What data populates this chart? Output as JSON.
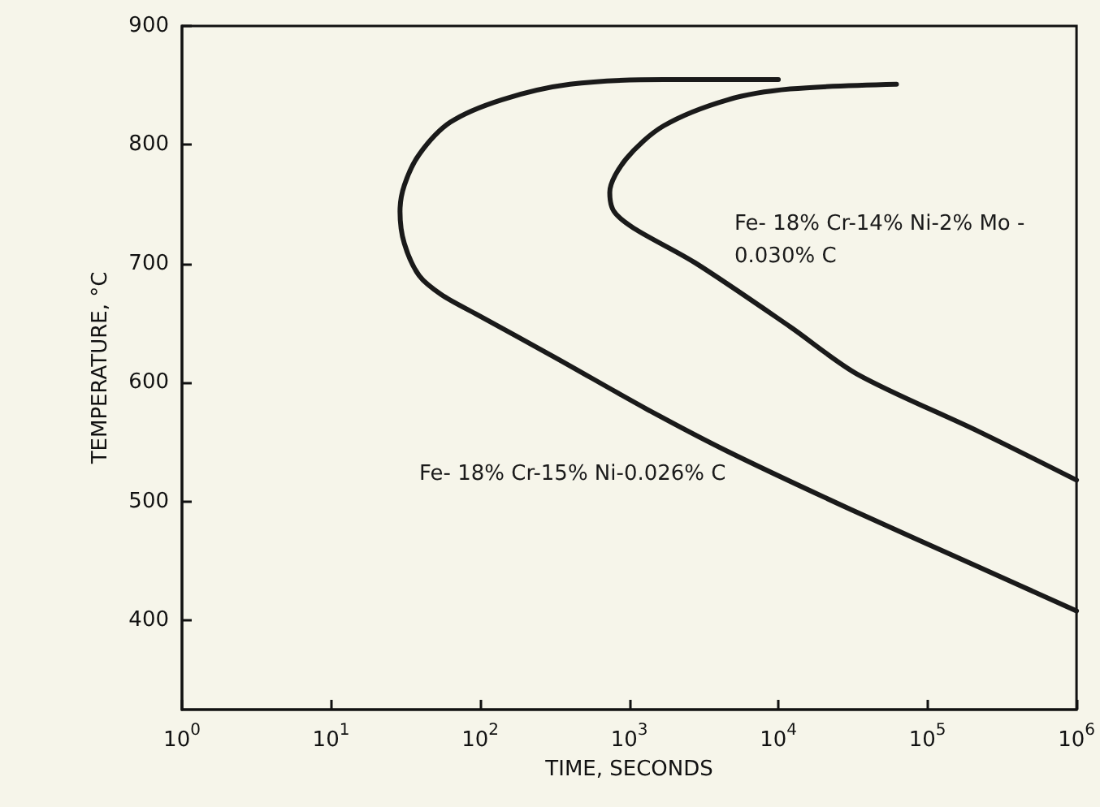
{
  "chart_data": {
    "type": "line",
    "xlabel": "TIME, SECONDS",
    "ylabel": "TEMPERATURE, °C",
    "log": "x",
    "grid": false,
    "legend": false,
    "marker": "none",
    "xlim": [
      1,
      1000000
    ],
    "ylim": [
      325,
      900
    ],
    "xticks": [
      {
        "value": 1,
        "label": "10$^{0}$"
      },
      {
        "value": 10,
        "label": "10$^{1}$"
      },
      {
        "value": 100,
        "label": "10$^{2}$"
      },
      {
        "value": 1000,
        "label": "10$^{3}$"
      },
      {
        "value": 10000,
        "label": "10$^{4}$"
      },
      {
        "value": 100000,
        "label": "10$^{5}$"
      },
      {
        "value": 1000000,
        "label": "10$^{6}$"
      }
    ],
    "yticks": [
      400,
      500,
      600,
      700,
      800,
      900
    ],
    "series": [
      {
        "name": "Fe- 18% Cr-15% Ni-0.026% C",
        "color": "#1a1a1a",
        "x": [
          10000,
          1700,
          400,
          140,
          63,
          39,
          31,
          29,
          31,
          39,
          55,
          93,
          320,
          1300,
          4600,
          31000,
          220000,
          1000000
        ],
        "values": [
          855,
          855,
          851,
          838,
          819,
          792,
          766,
          744,
          717,
          690,
          674,
          658,
          621,
          578,
          542,
          493,
          445,
          408
        ]
      },
      {
        "name": "Fe- 18% Cr-14% Ni-2% Mo - 0.030% C",
        "color": "#1a1a1a",
        "x": [
          62000,
          12000,
          4600,
          1700,
          950,
          740,
          790,
          1070,
          2750,
          12000,
          34000,
          220000,
          1000000
        ],
        "values": [
          851,
          847,
          838,
          816,
          788,
          760,
          744,
          730,
          701,
          647,
          607,
          559,
          518
        ]
      }
    ]
  }
}
